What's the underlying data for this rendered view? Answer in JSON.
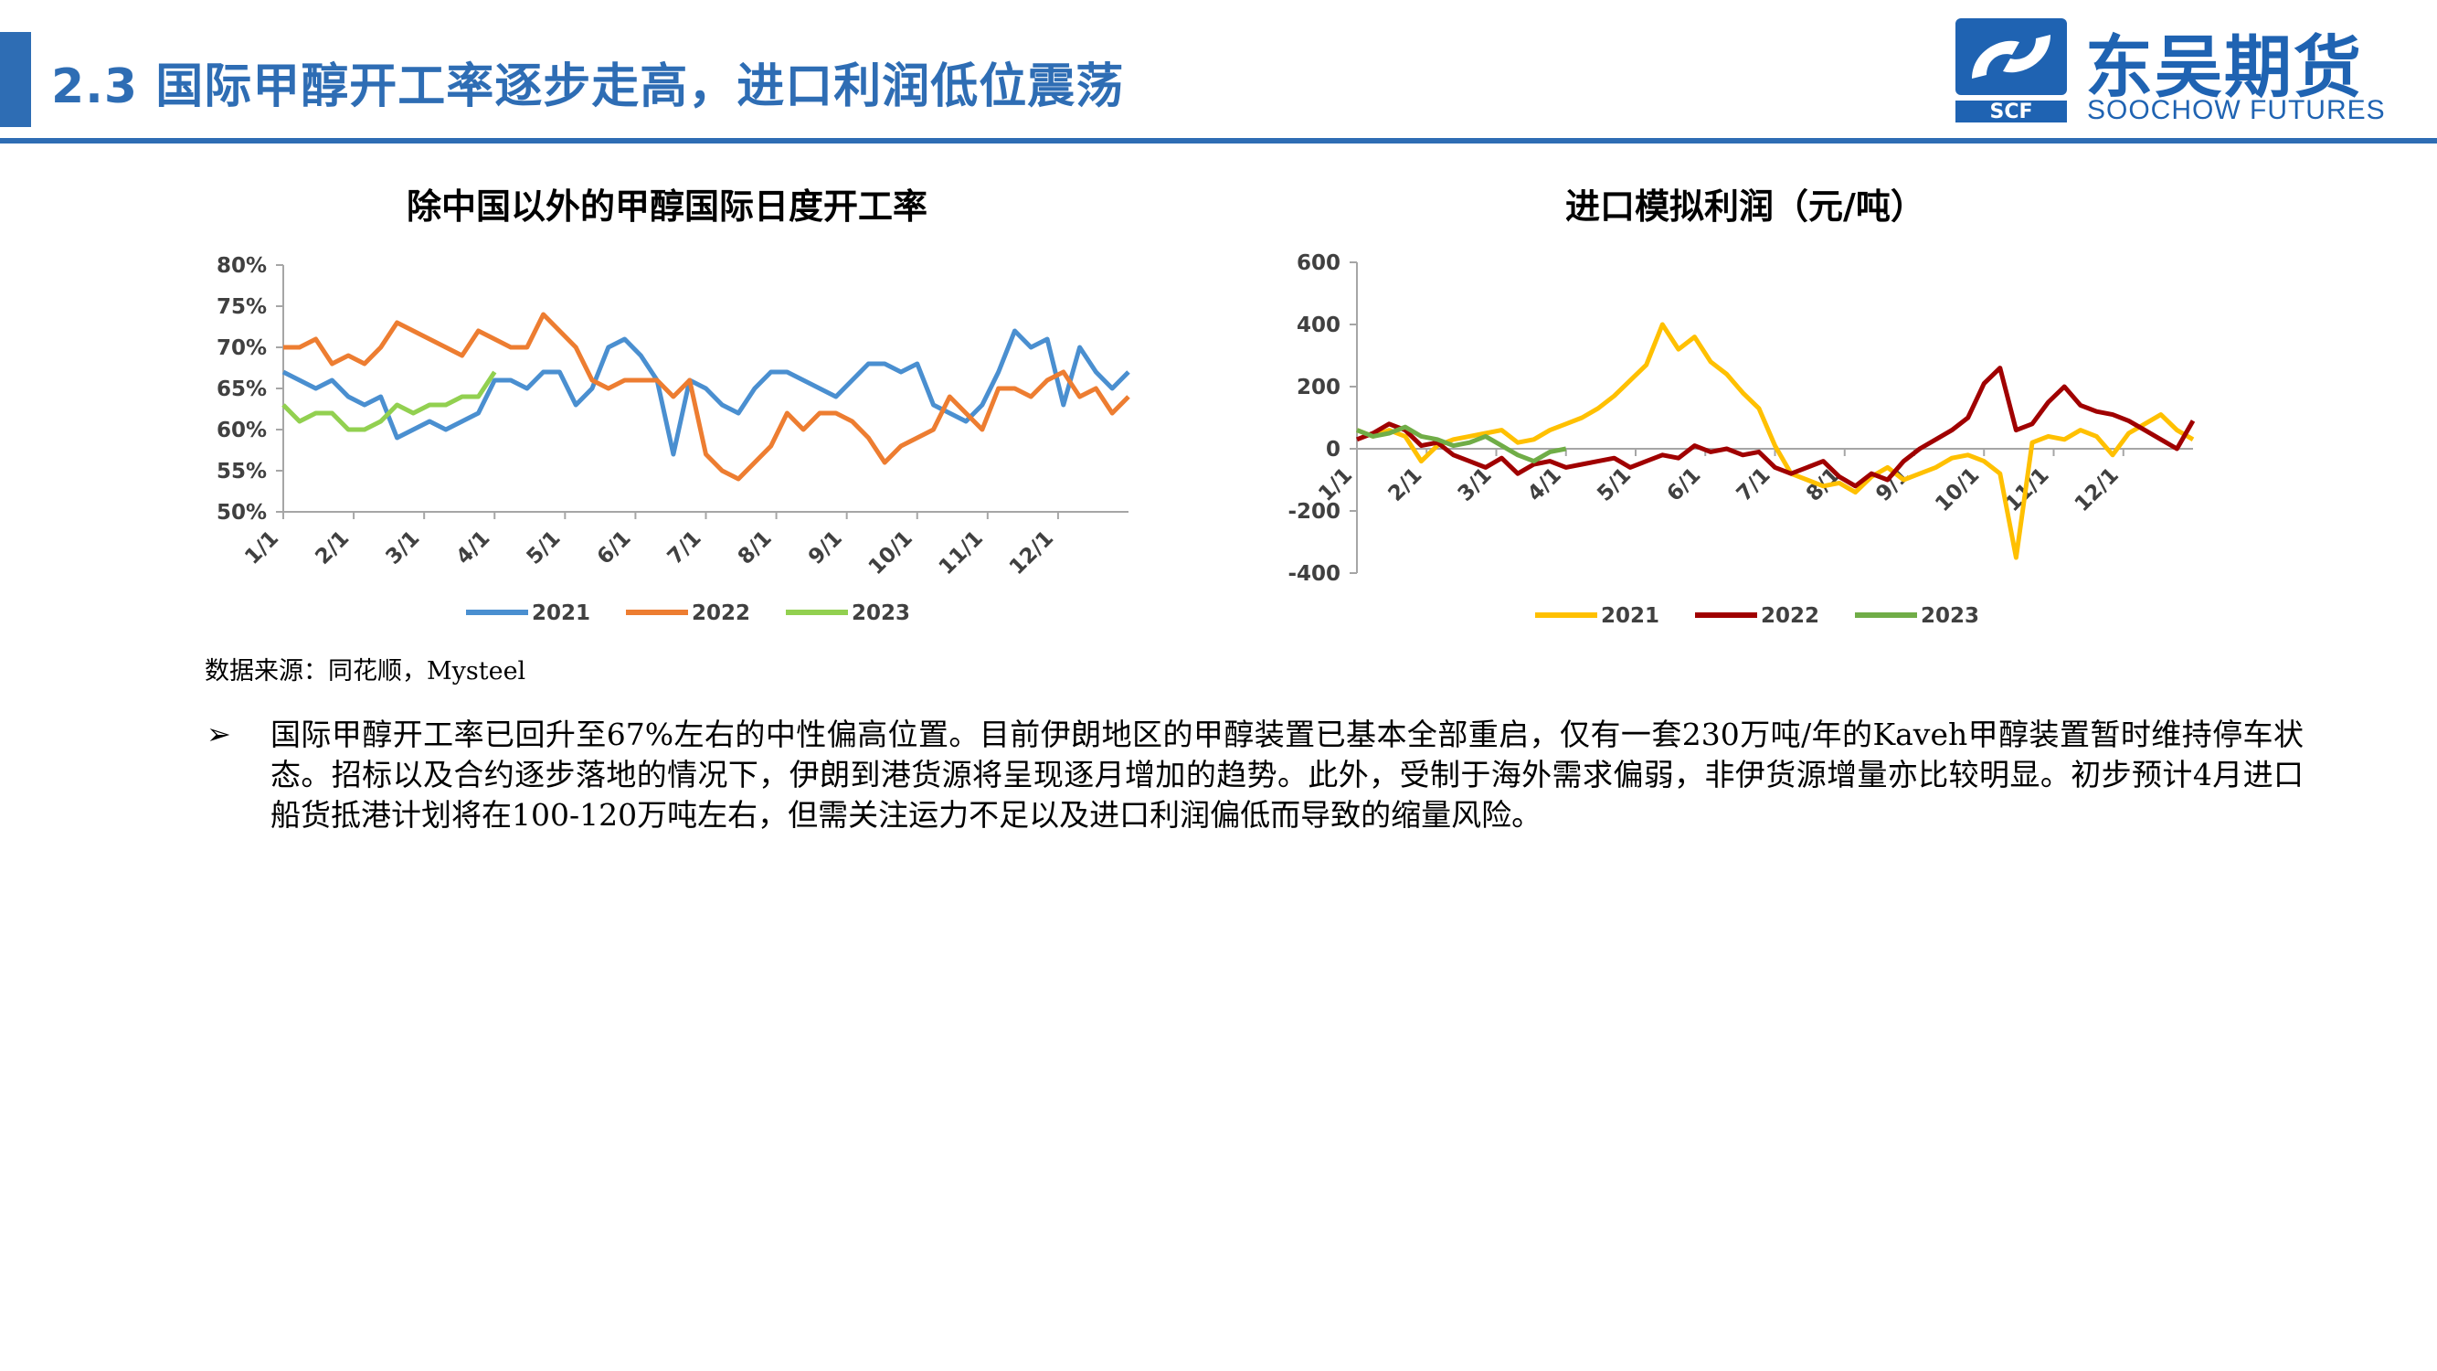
{
  "header": {
    "title": "2.3 国际甲醇开工率逐步走高，进口利润低位震荡",
    "logo_cn": "东吴期货",
    "logo_en": "SOOCHOW FUTURES",
    "logo_mark_text": "SCF",
    "accent_color": "#2e6db4"
  },
  "source": "数据来源：同花顺，Mysteel",
  "bullet_icon": "arrow-bullet-icon",
  "body_text": "国际甲醇开工率已回升至67%左右的中性偏高位置。目前伊朗地区的甲醇装置已基本全部重启，仅有一套230万吨/年的Kaveh甲醇装置暂时维持停车状态。招标以及合约逐步落地的情况下，伊朗到港货源将呈现逐月增加的趋势。此外，受制于海外需求偏弱，非伊货源增量亦比较明显。初步预计4月进口船货抵港计划将在100-120万吨左右，但需关注运力不足以及进口利润偏低而导致的缩量风险。",
  "chart_data": [
    {
      "type": "line",
      "title": "除中国以外的甲醇国际日度开工率",
      "x_ticks": [
        "1/1",
        "2/1",
        "3/1",
        "4/1",
        "5/1",
        "6/1",
        "7/1",
        "8/1",
        "9/1",
        "10/1",
        "11/1",
        "12/1"
      ],
      "y_ticks": [
        "80%",
        "75%",
        "70%",
        "65%",
        "60%",
        "55%",
        "50%"
      ],
      "ylim": [
        50,
        80
      ],
      "x_unit": "week-of-year",
      "xlim": [
        0,
        52
      ],
      "legend_position": "bottom",
      "grid": false,
      "series": [
        {
          "name": "2021",
          "color": "#4a8fd0",
          "x": [
            0,
            1,
            2,
            3,
            4,
            5,
            6,
            7,
            8,
            9,
            10,
            11,
            12,
            13,
            14,
            15,
            16,
            17,
            18,
            19,
            20,
            21,
            22,
            23,
            24,
            25,
            26,
            27,
            28,
            29,
            30,
            31,
            32,
            33,
            34,
            35,
            36,
            37,
            38,
            39,
            40,
            41,
            42,
            43,
            44,
            45,
            46,
            47,
            48,
            49,
            50,
            51,
            52
          ],
          "values": [
            67,
            66,
            65,
            66,
            64,
            63,
            64,
            59,
            60,
            61,
            60,
            61,
            62,
            66,
            66,
            65,
            67,
            67,
            63,
            65,
            70,
            71,
            69,
            66,
            57,
            66,
            65,
            63,
            62,
            65,
            67,
            67,
            66,
            65,
            64,
            66,
            68,
            68,
            67,
            68,
            63,
            62,
            61,
            63,
            67,
            72,
            70,
            71,
            63,
            70,
            67,
            65,
            67
          ]
        },
        {
          "name": "2022",
          "color": "#ed7d31",
          "x": [
            0,
            1,
            2,
            3,
            4,
            5,
            6,
            7,
            8,
            9,
            10,
            11,
            12,
            13,
            14,
            15,
            16,
            17,
            18,
            19,
            20,
            21,
            22,
            23,
            24,
            25,
            26,
            27,
            28,
            29,
            30,
            31,
            32,
            33,
            34,
            35,
            36,
            37,
            38,
            39,
            40,
            41,
            42,
            43,
            44,
            45,
            46,
            47,
            48,
            49,
            50,
            51,
            52
          ],
          "values": [
            70,
            70,
            71,
            68,
            69,
            68,
            70,
            73,
            72,
            71,
            70,
            69,
            72,
            71,
            70,
            70,
            74,
            72,
            70,
            66,
            65,
            66,
            66,
            66,
            64,
            66,
            57,
            55,
            54,
            56,
            58,
            62,
            60,
            62,
            62,
            61,
            59,
            56,
            58,
            59,
            60,
            64,
            62,
            60,
            65,
            65,
            64,
            66,
            67,
            64,
            65,
            62,
            64
          ]
        },
        {
          "name": "2023",
          "color": "#92d050",
          "x": [
            0,
            1,
            2,
            3,
            4,
            5,
            6,
            7,
            8,
            9,
            10,
            11,
            12,
            13
          ],
          "values": [
            63,
            61,
            62,
            62,
            60,
            60,
            61,
            63,
            62,
            63,
            63,
            64,
            64,
            67
          ]
        }
      ]
    },
    {
      "type": "line",
      "title": "进口模拟利润（元/吨）",
      "x_ticks": [
        "1/1",
        "2/1",
        "3/1",
        "4/1",
        "5/1",
        "6/1",
        "7/1",
        "8/1",
        "9/1",
        "10/1",
        "11/1",
        "12/1"
      ],
      "y_ticks": [
        "600",
        "400",
        "200",
        "0",
        "-200",
        "-400"
      ],
      "ylim": [
        -400,
        600
      ],
      "x_unit": "week-of-year",
      "xlim": [
        0,
        52
      ],
      "legend_position": "bottom",
      "grid": false,
      "series": [
        {
          "name": "2021",
          "color": "#ffc000",
          "x": [
            0,
            1,
            2,
            3,
            4,
            5,
            6,
            7,
            8,
            9,
            10,
            11,
            12,
            13,
            14,
            15,
            16,
            17,
            18,
            19,
            20,
            21,
            22,
            23,
            24,
            25,
            26,
            27,
            28,
            29,
            30,
            31,
            32,
            33,
            34,
            35,
            36,
            37,
            38,
            39,
            40,
            41,
            42,
            43,
            44,
            45,
            46,
            47,
            48,
            49,
            50,
            51,
            52
          ],
          "values": [
            60,
            40,
            60,
            40,
            -40,
            10,
            30,
            40,
            50,
            60,
            20,
            30,
            60,
            80,
            100,
            130,
            170,
            220,
            270,
            400,
            320,
            360,
            280,
            240,
            180,
            130,
            10,
            -80,
            -100,
            -120,
            -110,
            -140,
            -90,
            -60,
            -100,
            -80,
            -60,
            -30,
            -20,
            -40,
            -80,
            -350,
            20,
            40,
            30,
            60,
            40,
            -20,
            50,
            80,
            110,
            60,
            30
          ]
        },
        {
          "name": "2022",
          "color": "#a00000",
          "x": [
            0,
            1,
            2,
            3,
            4,
            5,
            6,
            7,
            8,
            9,
            10,
            11,
            12,
            13,
            14,
            15,
            16,
            17,
            18,
            19,
            20,
            21,
            22,
            23,
            24,
            25,
            26,
            27,
            28,
            29,
            30,
            31,
            32,
            33,
            34,
            35,
            36,
            37,
            38,
            39,
            40,
            41,
            42,
            43,
            44,
            45,
            46,
            47,
            48,
            49,
            50,
            51,
            52
          ],
          "values": [
            30,
            50,
            80,
            60,
            10,
            20,
            -20,
            -40,
            -60,
            -30,
            -80,
            -50,
            -40,
            -60,
            -50,
            -40,
            -30,
            -60,
            -40,
            -20,
            -30,
            10,
            -10,
            0,
            -20,
            -10,
            -60,
            -80,
            -60,
            -40,
            -90,
            -120,
            -80,
            -100,
            -40,
            0,
            30,
            60,
            100,
            210,
            260,
            60,
            80,
            150,
            200,
            140,
            120,
            110,
            90,
            60,
            30,
            0,
            90
          ]
        },
        {
          "name": "2023",
          "color": "#70ad47",
          "x": [
            0,
            1,
            2,
            3,
            4,
            5,
            6,
            7,
            8,
            9,
            10,
            11,
            12,
            13
          ],
          "values": [
            60,
            40,
            50,
            70,
            40,
            30,
            10,
            20,
            40,
            10,
            -20,
            -40,
            -10,
            0
          ]
        }
      ]
    }
  ]
}
